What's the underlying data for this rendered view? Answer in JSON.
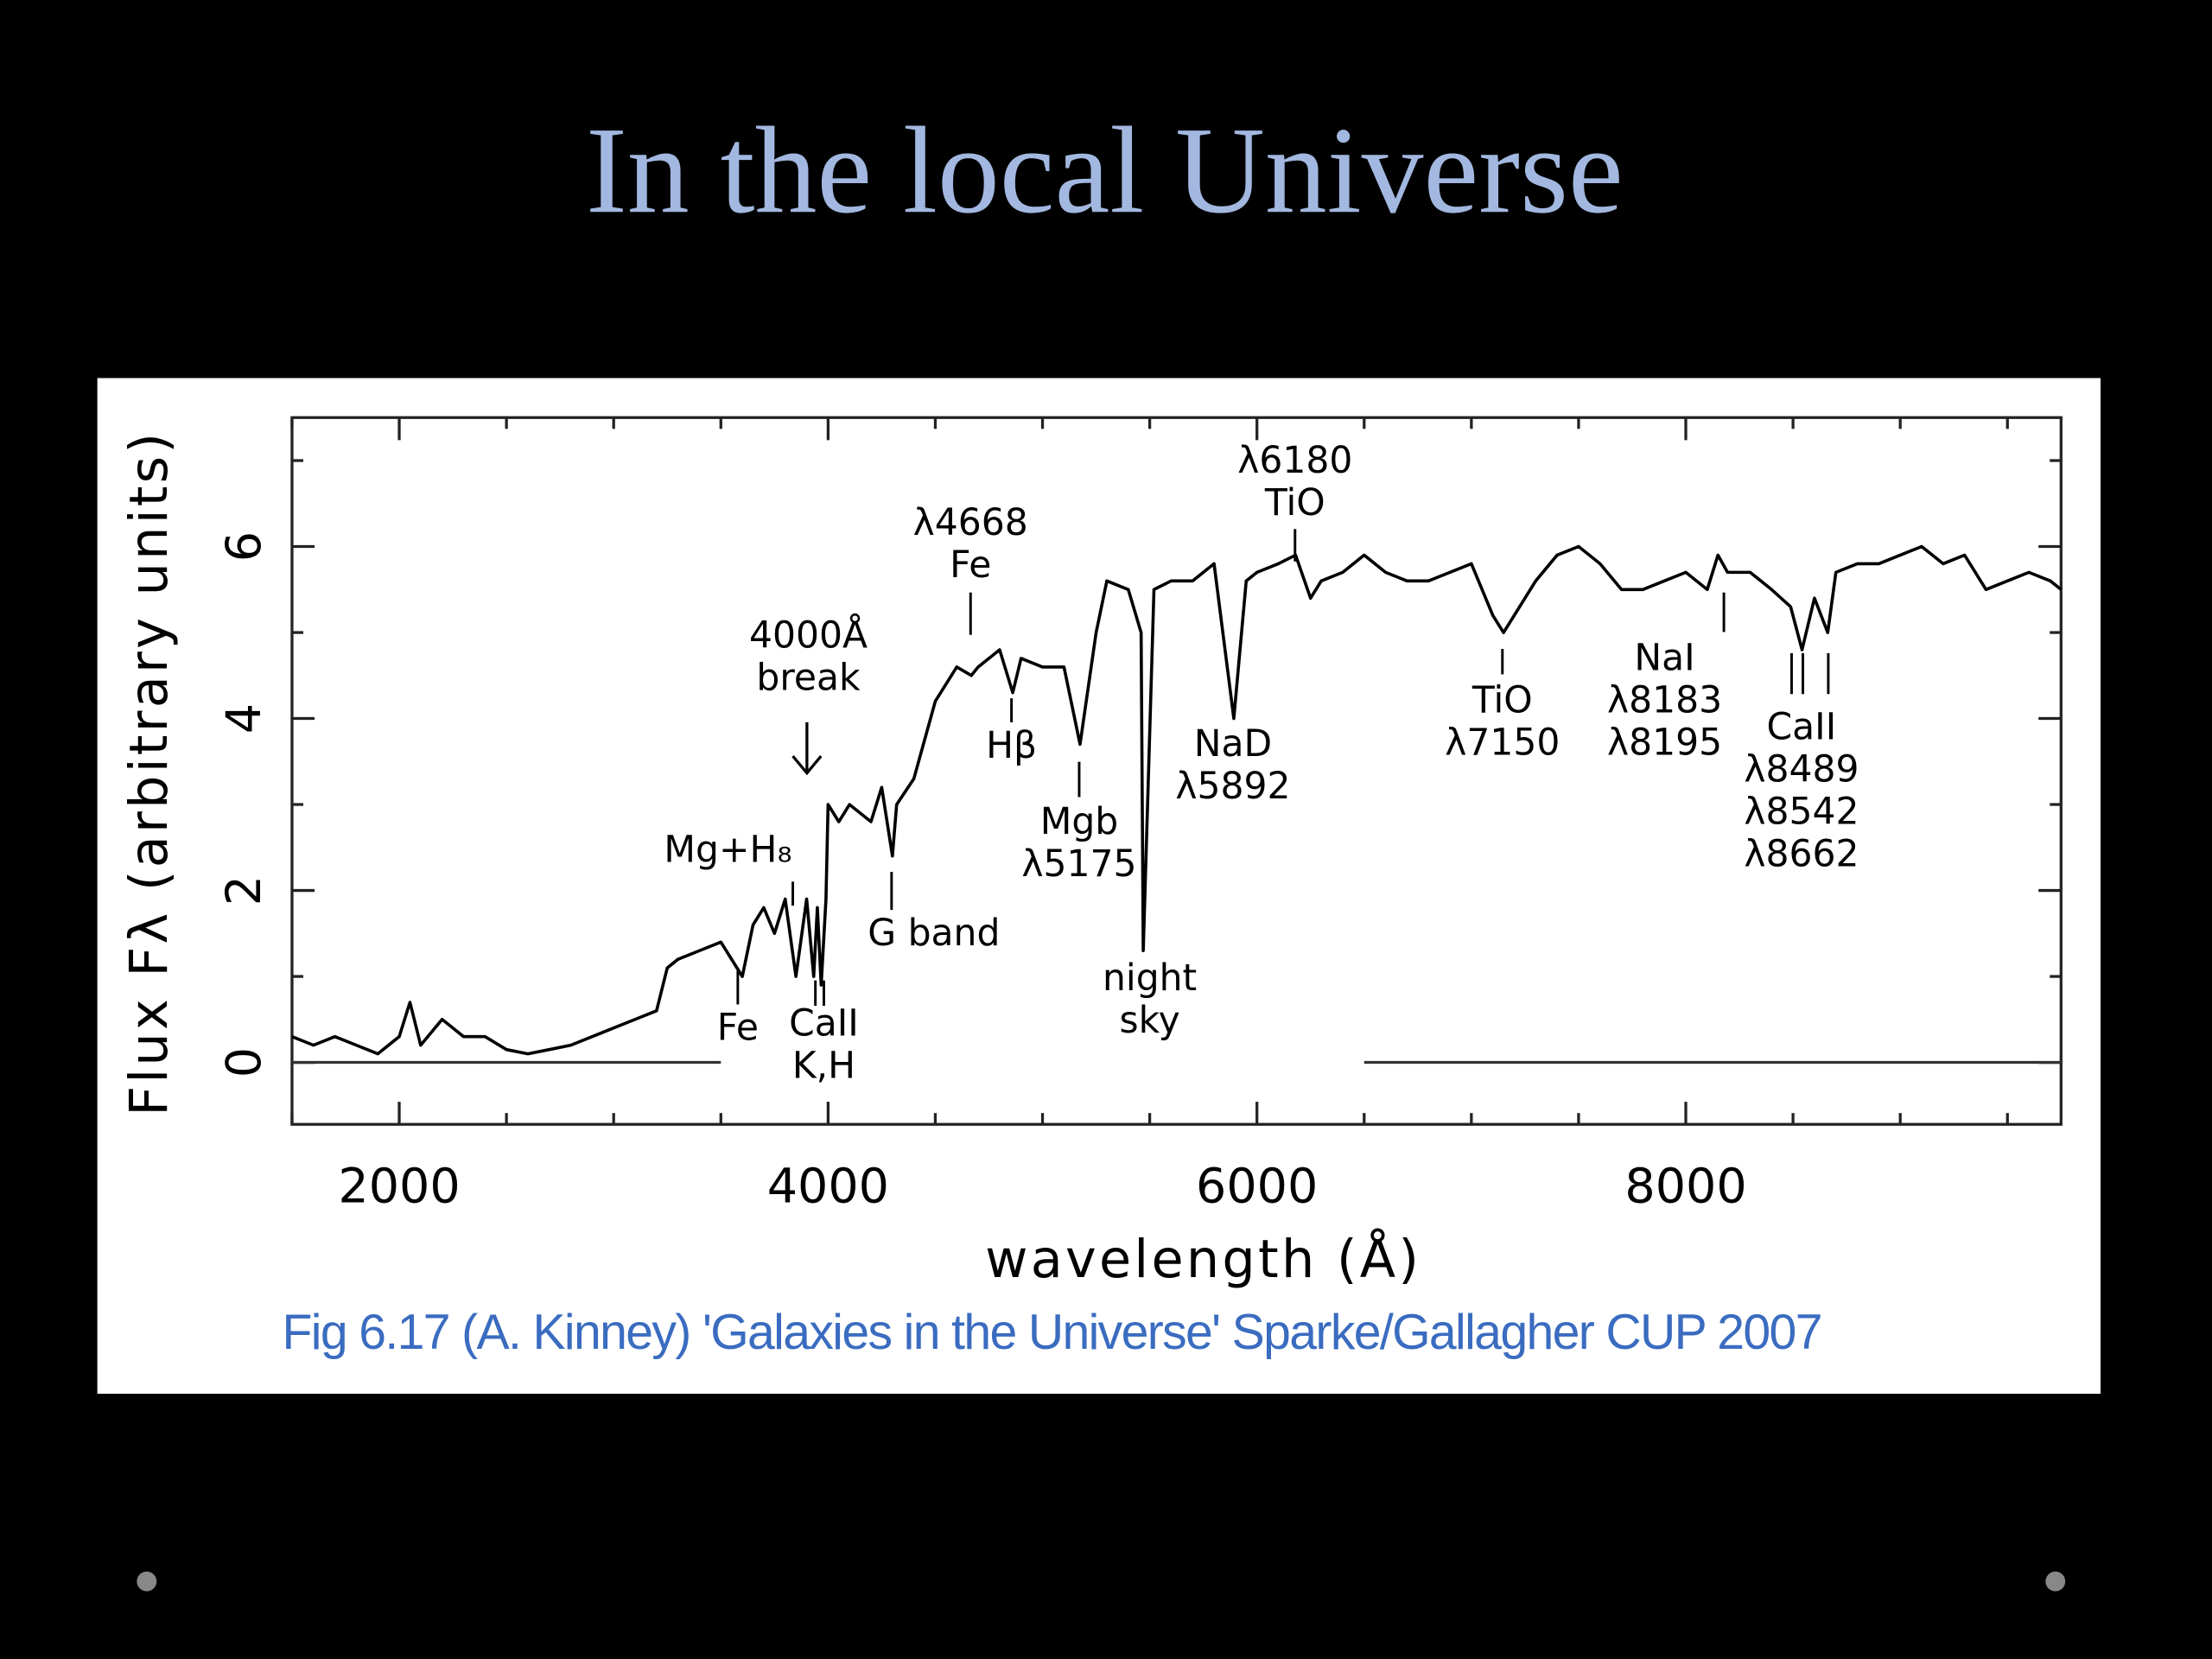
{
  "slide": {
    "title": "In the local Universe",
    "caption": "Fig 6.17 (A. Kinney) 'Galaxies in the Universe' Sparke/Gallagher CUP 2007"
  },
  "chart_data": {
    "type": "line",
    "xlabel": "wavelength (Å)",
    "ylabel": "Flux Fλ (arbitrary units)",
    "xlim": [
      1500,
      9750
    ],
    "ylim": [
      -0.72,
      7.5
    ],
    "xticks": [
      2000,
      4000,
      6000,
      8000
    ],
    "yticks": [
      0,
      2,
      4,
      6
    ],
    "xminorticks": [
      1500,
      2500,
      3000,
      3500,
      4500,
      5000,
      5500,
      6500,
      7000,
      7500,
      8500,
      9000,
      9500
    ],
    "yminorticks": [
      1,
      3,
      5,
      7
    ],
    "x": [
      1500,
      1600,
      1700,
      1800,
      1900,
      2000,
      2050,
      2100,
      2200,
      2300,
      2400,
      2500,
      2600,
      2700,
      2800,
      2900,
      3000,
      3100,
      3200,
      3250,
      3300,
      3400,
      3500,
      3600,
      3650,
      3700,
      3750,
      3800,
      3850,
      3900,
      3933,
      3950,
      3968,
      3990,
      4000,
      4050,
      4100,
      4200,
      4250,
      4300,
      4320,
      4400,
      4500,
      4600,
      4668,
      4700,
      4800,
      4861,
      4900,
      5000,
      5100,
      5175,
      5250,
      5300,
      5400,
      5460,
      5470,
      5520,
      5600,
      5700,
      5800,
      5892,
      5950,
      6000,
      6100,
      6180,
      6250,
      6300,
      6400,
      6500,
      6600,
      6700,
      6800,
      6900,
      7000,
      7100,
      7150,
      7200,
      7300,
      7400,
      7500,
      7600,
      7700,
      7800,
      7900,
      8000,
      8100,
      8150,
      8195,
      8300,
      8400,
      8489,
      8542,
      8600,
      8662,
      8700,
      8800,
      8900,
      9000,
      9100,
      9200,
      9300,
      9400,
      9500,
      9600,
      9700,
      9750
    ],
    "series": [
      {
        "color": "#000000",
        "values": [
          0.3,
          0.2,
          0.3,
          0.2,
          0.1,
          0.3,
          0.7,
          0.2,
          0.5,
          0.3,
          0.3,
          0.15,
          0.1,
          0.15,
          0.2,
          0.3,
          0.4,
          0.5,
          0.6,
          1.1,
          1.2,
          1.3,
          1.4,
          1.0,
          1.6,
          1.8,
          1.5,
          1.9,
          1.0,
          1.9,
          1.0,
          1.8,
          0.9,
          1.9,
          3.0,
          2.8,
          3.0,
          2.8,
          3.2,
          2.4,
          3.0,
          3.3,
          4.2,
          4.6,
          4.5,
          4.6,
          4.8,
          4.3,
          4.7,
          4.6,
          4.6,
          3.7,
          5.0,
          5.6,
          5.5,
          5.0,
          1.3,
          5.5,
          5.6,
          5.6,
          5.8,
          4.0,
          5.6,
          5.7,
          5.8,
          5.9,
          5.4,
          5.6,
          5.7,
          5.9,
          5.7,
          5.6,
          5.6,
          5.7,
          5.8,
          5.2,
          5.0,
          5.2,
          5.6,
          5.9,
          6.0,
          5.8,
          5.5,
          5.5,
          5.6,
          5.7,
          5.5,
          5.9,
          5.7,
          5.7,
          5.5,
          5.3,
          4.8,
          5.4,
          5.0,
          5.7,
          5.8,
          5.8,
          5.9,
          6.0,
          5.8,
          5.9,
          5.5,
          5.6,
          5.7,
          5.6,
          5.5
        ]
      },
      {
        "color": "#333333",
        "values": [
          0,
          0,
          0,
          0,
          0,
          0,
          0,
          0,
          0,
          0,
          0,
          0,
          0,
          0,
          0,
          0,
          0,
          0,
          0,
          0,
          0,
          0,
          0,
          null,
          null,
          null,
          null,
          null,
          null,
          null,
          null,
          null,
          null,
          null,
          null,
          null,
          null,
          null,
          null,
          null,
          null,
          null,
          null,
          null,
          null,
          null,
          null,
          null,
          null,
          null,
          null,
          null,
          null,
          null,
          null,
          null,
          null,
          null,
          null,
          null,
          null,
          null,
          null,
          null,
          null,
          null,
          null,
          null,
          null,
          0,
          0,
          0,
          0,
          0,
          0,
          0,
          0,
          0,
          0,
          0,
          0,
          0,
          0,
          0,
          0,
          0,
          0,
          0,
          0,
          0,
          0,
          0,
          0,
          0,
          0,
          0,
          0,
          0,
          0,
          0,
          0,
          0,
          0,
          0,
          0,
          0,
          0
        ]
      }
    ],
    "annotations": [
      {
        "lines": [
          "4000Å",
          "break"
        ]
      },
      {
        "lines": [
          "λ4668",
          "Fe"
        ]
      },
      {
        "lines": [
          "λ6180",
          "TiO"
        ]
      },
      {
        "lines": [
          "Mg+H₈"
        ]
      },
      {
        "lines": [
          "Fe"
        ]
      },
      {
        "lines": [
          "CaII",
          "K,H"
        ]
      },
      {
        "lines": [
          "G band"
        ]
      },
      {
        "lines": [
          "Hβ"
        ]
      },
      {
        "lines": [
          "Mgb",
          "λ5175"
        ]
      },
      {
        "lines": [
          "night",
          "sky"
        ]
      },
      {
        "lines": [
          "NaD",
          "λ5892"
        ]
      },
      {
        "lines": [
          "TiO",
          "λ7150"
        ]
      },
      {
        "lines": [
          "NaI",
          "λ8183",
          "λ8195"
        ]
      },
      {
        "lines": [
          "CaII",
          "λ8489",
          "λ8542",
          "λ8662"
        ]
      }
    ]
  }
}
